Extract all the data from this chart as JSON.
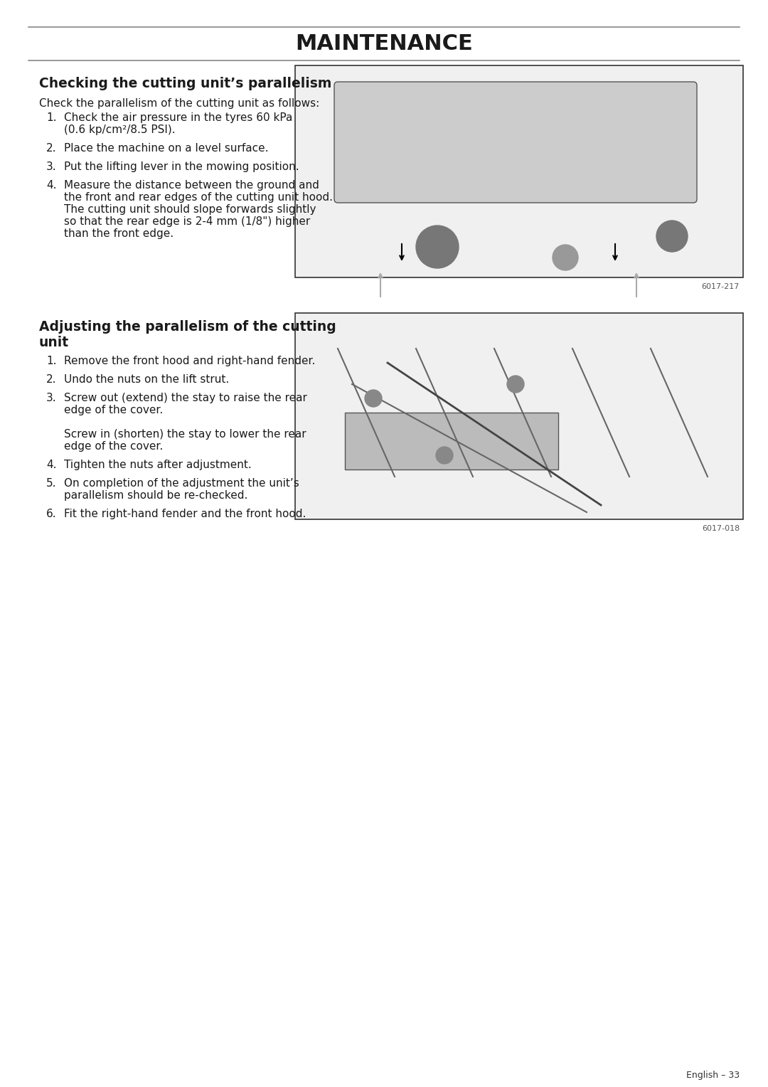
{
  "page_title": "MAINTENANCE",
  "bg_color": "#ffffff",
  "title_color": "#1a1a1a",
  "text_color": "#1a1a1a",
  "section1_heading": "Checking the cutting unit’s parallelism",
  "section1_intro": "Check the parallelism of the cutting unit as follows:",
  "section1_items": [
    "Check the air pressure in the tyres 60 kPa\n(0.6 kp/cm²/8.5 PSI).",
    "Place the machine on a level surface.",
    "Put the lifting lever in the mowing position.",
    "Measure the distance between the ground and\nthe front and rear edges of the cutting unit hood.\nThe cutting unit should slope forwards slightly\nso that the rear edge is 2-4 mm (1/8\") higher\nthan the front edge."
  ],
  "image1_code": "6017-217",
  "section2_heading": "Adjusting the parallelism of the cutting\nunit",
  "section2_items": [
    "Remove the front hood and right-hand fender.",
    "Undo the nuts on the lift strut.",
    "Screw out (extend) the stay to raise the rear\nedge of the cover.\n\nScrew in (shorten) the stay to lower the rear\nedge of the cover.",
    "Tighten the nuts after adjustment.",
    "On completion of the adjustment the unit’s\nparallelism should be re-checked.",
    "Fit the right-hand fender and the front hood."
  ],
  "image2_code": "6017-018",
  "footer_text": "English – 33",
  "line_color": "#888888"
}
